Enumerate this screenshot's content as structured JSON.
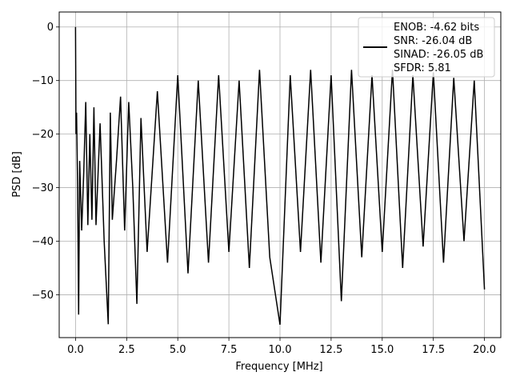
{
  "chart_data": {
    "type": "line",
    "title": "",
    "xlabel": "Frequency [MHz]",
    "ylabel": "PSD [dB]",
    "xlim": [
      -0.8,
      20.8
    ],
    "ylim": [
      -58,
      2.8
    ],
    "xticks": [
      0.0,
      2.5,
      5.0,
      7.5,
      10.0,
      12.5,
      15.0,
      17.5,
      20.0
    ],
    "xtick_labels": [
      "0.0",
      "2.5",
      "5.0",
      "7.5",
      "10.0",
      "12.5",
      "15.0",
      "17.5",
      "20.0"
    ],
    "yticks": [
      0,
      -10,
      -20,
      -30,
      -40,
      -50
    ],
    "ytick_labels": [
      "0",
      "−10",
      "−20",
      "−30",
      "−40",
      "−50"
    ],
    "grid": true,
    "legend_position": "top-right",
    "legend_lines": [
      "ENOB: -4.62 bits",
      "SNR: -26.04 dB",
      "SINAD: -26.05 dB",
      "SFDR: 5.81"
    ],
    "series": [
      {
        "color": "#000000",
        "x": [
          0,
          0.02,
          0.05,
          0.1,
          0.15,
          0.2,
          0.3,
          0.4,
          0.5,
          0.6,
          0.7,
          0.8,
          0.9,
          1.0,
          1.2,
          1.4,
          1.6,
          1.7,
          1.8,
          2.0,
          2.2,
          2.4,
          2.6,
          2.8,
          3.0,
          3.2,
          3.5,
          4.0,
          4.5,
          5.0,
          5.5,
          6.0,
          6.5,
          7.0,
          7.5,
          8.0,
          8.5,
          9.0,
          9.5,
          10.0,
          10.5,
          11.0,
          11.5,
          12.0,
          12.5,
          13.0,
          13.5,
          14.0,
          14.5,
          15.0,
          15.5,
          16.0,
          16.5,
          17.0,
          17.5,
          18.0,
          18.5,
          19.0,
          19.5,
          20.0
        ],
        "y": [
          0.0,
          -20.0,
          -16.0,
          -30.0,
          -53.7,
          -25.0,
          -38.0,
          -27.0,
          -14.0,
          -37.0,
          -20.0,
          -36.0,
          -15.0,
          -37.0,
          -18.0,
          -40.0,
          -55.5,
          -16.0,
          -36.0,
          -25.0,
          -13.0,
          -38.0,
          -14.0,
          -30.0,
          -51.7,
          -17.0,
          -42.0,
          -12.0,
          -44.0,
          -9.0,
          -46.0,
          -10.0,
          -44.0,
          -9.0,
          -42.0,
          -10.0,
          -45.0,
          -8.0,
          -43.0,
          -55.6,
          -9.0,
          -42.0,
          -8.0,
          -44.0,
          -9.0,
          -51.2,
          -8.0,
          -43.0,
          -9.0,
          -42.0,
          -8.0,
          -45.0,
          -9.0,
          -41.0,
          -8.5,
          -44.0,
          -9.5,
          -40.0,
          -10.0,
          -49.0
        ]
      }
    ]
  }
}
